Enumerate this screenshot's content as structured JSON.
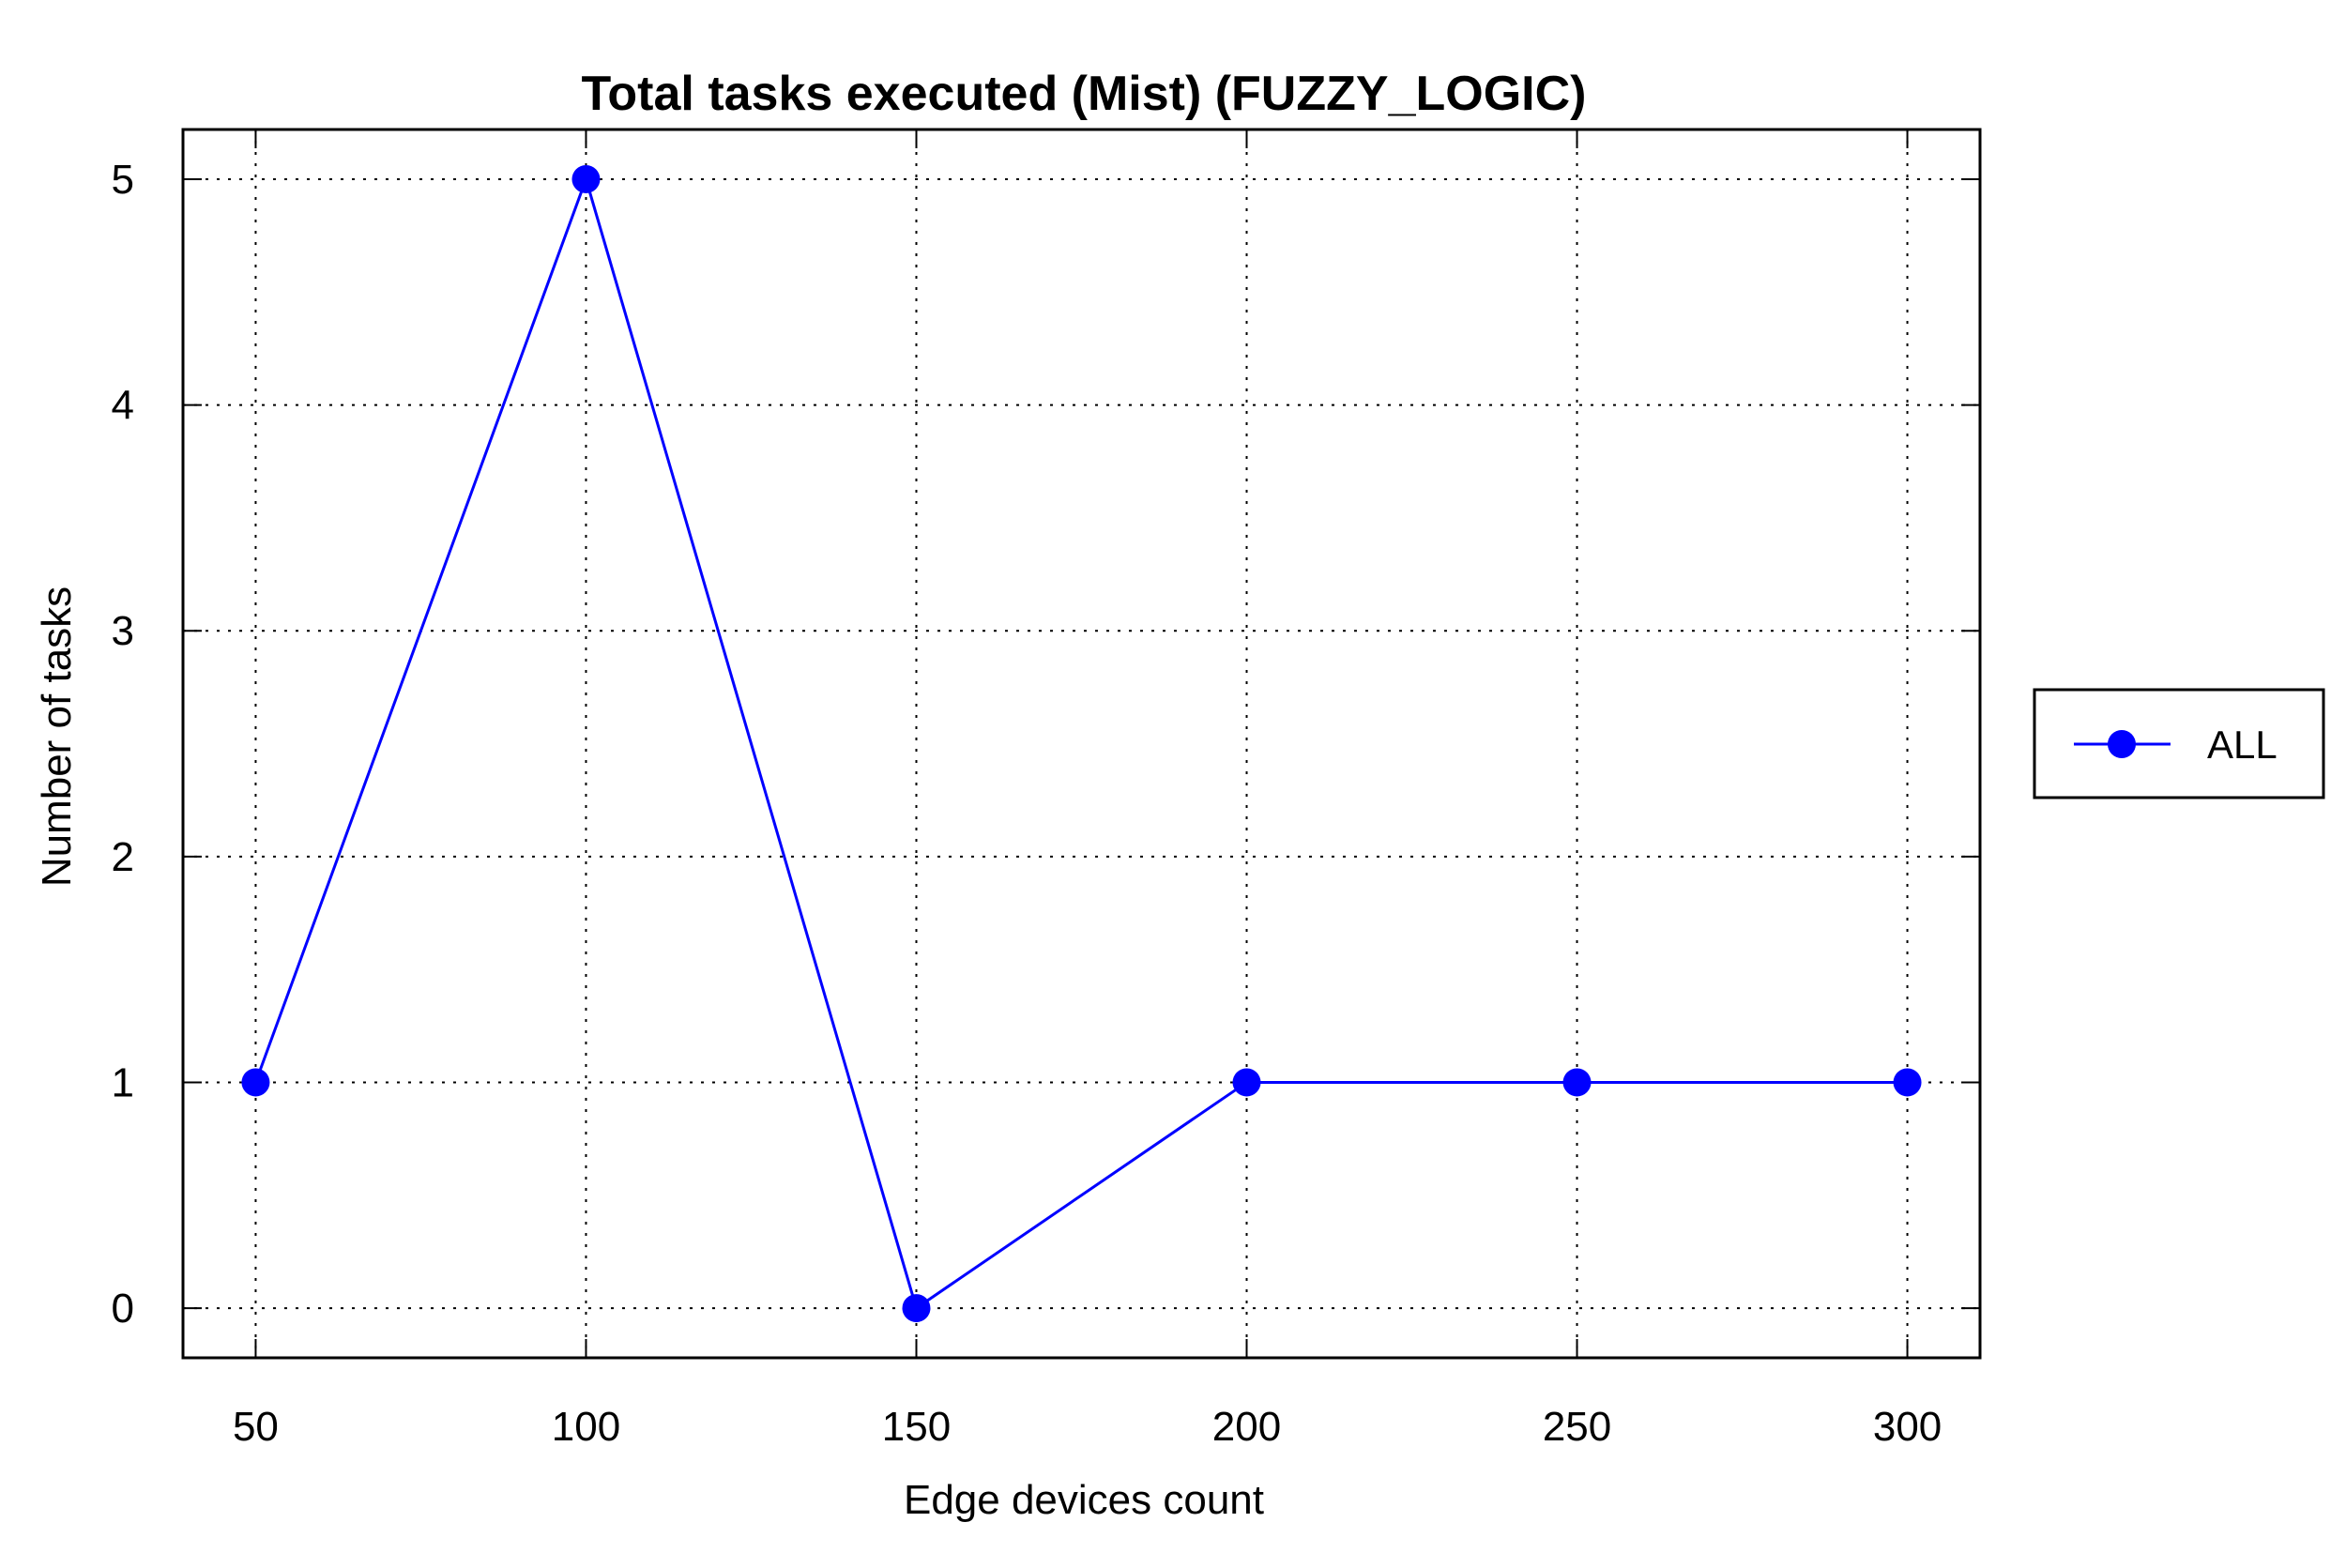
{
  "chart_data": {
    "type": "line",
    "title": "Total tasks executed (Mist) (FUZZY_LOGIC)",
    "xlabel": "Edge devices count",
    "ylabel": "Number of tasks",
    "x": [
      50,
      100,
      150,
      200,
      250,
      300
    ],
    "x_ticks": [
      "50",
      "100",
      "150",
      "200",
      "250",
      "300"
    ],
    "y_ticks": [
      "0",
      "1",
      "2",
      "3",
      "4",
      "5"
    ],
    "xlim": [
      39,
      311
    ],
    "ylim": [
      -0.22,
      5.22
    ],
    "grid": true,
    "legend_position": "right",
    "series": [
      {
        "name": "ALL",
        "color": "#0000ff",
        "values": [
          1,
          5,
          0,
          1,
          1,
          1
        ]
      }
    ]
  }
}
